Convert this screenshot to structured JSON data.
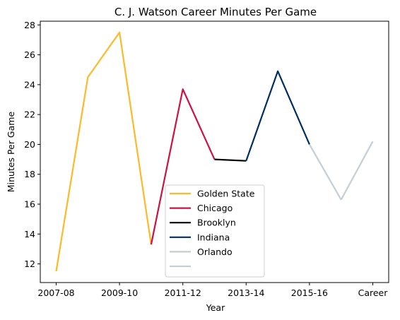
{
  "chart_data": {
    "type": "line",
    "title": "C. J. Watson Career Minutes Per Game",
    "xlabel": "Year",
    "ylabel": "Minutes Per Game",
    "ylim": [
      10.75,
      28.25
    ],
    "yticks": [
      12,
      14,
      16,
      18,
      20,
      22,
      24,
      26,
      28
    ],
    "x_tick_labels": [
      {
        "index": 0,
        "label": "2007-08"
      },
      {
        "index": 2,
        "label": "2009-10"
      },
      {
        "index": 4,
        "label": "2011-12"
      },
      {
        "index": 6,
        "label": "2013-14"
      },
      {
        "index": 8,
        "label": "2015-16"
      },
      {
        "index": 10,
        "label": "Career"
      }
    ],
    "legend_position": "lower-center",
    "series": [
      {
        "name": "Golden State",
        "color": "#FDB927",
        "points": [
          [
            0,
            11.5
          ],
          [
            1,
            24.5
          ],
          [
            2,
            27.5
          ],
          [
            3,
            13.3
          ]
        ]
      },
      {
        "name": "Chicago",
        "color": "#CE1141",
        "points": [
          [
            3,
            13.3
          ],
          [
            4,
            23.7
          ],
          [
            5,
            19.0
          ]
        ]
      },
      {
        "name": "Brooklyn",
        "color": "#000000",
        "points": [
          [
            5,
            19.0
          ],
          [
            6,
            18.9
          ]
        ]
      },
      {
        "name": "Indiana",
        "color": "#002D62",
        "points": [
          [
            6,
            18.9
          ],
          [
            7,
            24.9
          ],
          [
            8,
            20.0
          ]
        ]
      },
      {
        "name": "Orlando",
        "color": "#C4CED4",
        "points": [
          [
            8,
            20.0
          ],
          [
            9,
            16.3
          ]
        ]
      },
      {
        "name": "",
        "color": "#C4CED4",
        "points": [
          [
            9,
            16.3
          ],
          [
            10,
            20.2
          ]
        ]
      }
    ]
  }
}
